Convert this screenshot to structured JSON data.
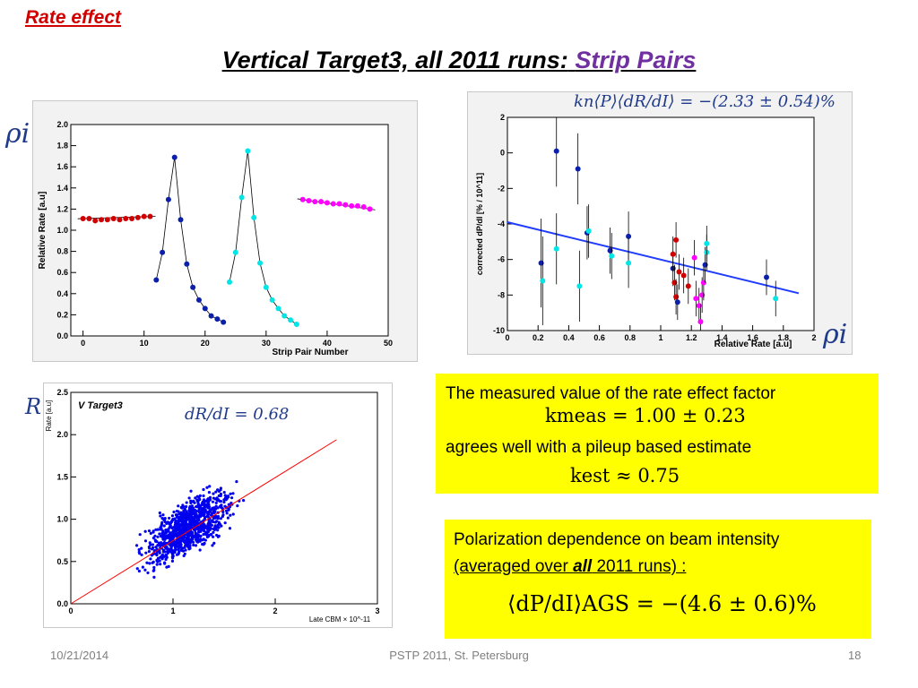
{
  "header": {
    "section_title": "Rate effect",
    "title_main": "Vertical Target3, all 2011 runs:",
    "title_accent": "Strip Pairs"
  },
  "labels": {
    "rho_left": "ρi",
    "rho_right": "ρi",
    "r_label": "R",
    "formula_top": "kn⟨P⟩⟨dR/dI⟩ = −(2.33 ± 0.54)%",
    "formula_dr": "dR/dI = 0.68"
  },
  "box1": {
    "line1": "The measured value of the rate effect factor",
    "math1": "kmeas = 1.00 ± 0.23",
    "line2": "agrees well with a pileup based estimate",
    "math2": "kest ≈ 0.75"
  },
  "box2": {
    "line1": "Polarization dependence on beam intensity",
    "line2_a": "(averaged over ",
    "line2_b": "all",
    "line2_c": " 2011 runs) :",
    "math": "⟨dP/dI⟩AGS = −(4.6 ± 0.6)%"
  },
  "footer": {
    "date": "10/21/2014",
    "conference": "PSTP 2011, St. Petersburg",
    "page": "18"
  },
  "chart_data": [
    {
      "type": "scatter",
      "xlabel": "Strip Pair Number",
      "ylabel": "Relative Rate [a.u]",
      "xlim": [
        -2,
        50
      ],
      "ylim": [
        0,
        2.0
      ],
      "xticks": [
        0,
        10,
        20,
        30,
        40,
        50
      ],
      "yticks": [
        0,
        0.2,
        0.4,
        0.6,
        0.8,
        1.0,
        1.2,
        1.4,
        1.6,
        1.8,
        2.0
      ],
      "series": [
        {
          "color": "#d00000",
          "x": [
            0,
            1,
            2,
            3,
            4,
            5,
            6,
            7,
            8,
            9,
            10,
            11
          ],
          "y": [
            1.11,
            1.11,
            1.09,
            1.1,
            1.1,
            1.11,
            1.1,
            1.11,
            1.11,
            1.12,
            1.13,
            1.13
          ]
        },
        {
          "color": "#0b1fa8",
          "x": [
            12,
            13,
            14,
            15,
            16,
            17,
            18,
            19,
            20,
            21,
            22,
            23
          ],
          "y": [
            0.53,
            0.79,
            1.29,
            1.69,
            1.1,
            0.68,
            0.46,
            0.34,
            0.26,
            0.19,
            0.16,
            0.13
          ]
        },
        {
          "color": "#00e5e5",
          "x": [
            24,
            25,
            26,
            27,
            28,
            29,
            30,
            31,
            32,
            33,
            34,
            35
          ],
          "y": [
            0.51,
            0.79,
            1.31,
            1.75,
            1.12,
            0.69,
            0.46,
            0.34,
            0.26,
            0.19,
            0.15,
            0.11
          ]
        },
        {
          "color": "#ff00ff",
          "x": [
            36,
            37,
            38,
            39,
            40,
            41,
            42,
            43,
            44,
            45,
            46,
            47
          ],
          "y": [
            1.29,
            1.28,
            1.27,
            1.27,
            1.26,
            1.25,
            1.25,
            1.24,
            1.23,
            1.23,
            1.22,
            1.2
          ]
        }
      ]
    },
    {
      "type": "scatter",
      "xlabel": "Relative Rate [a.u]",
      "ylabel": "corrected dP/dI [% / 10^11]",
      "xlim": [
        0,
        2.0
      ],
      "ylim": [
        -10,
        2
      ],
      "xticks": [
        0,
        0.2,
        0.4,
        0.6,
        0.8,
        1.0,
        1.2,
        1.4,
        1.6,
        1.8,
        2.0
      ],
      "yticks": [
        -10,
        -8,
        -6,
        -4,
        -2,
        0,
        2
      ],
      "fit_line": {
        "x": [
          0.0,
          1.9
        ],
        "y": [
          -3.9,
          -7.9
        ]
      },
      "points": [
        {
          "x": 0.22,
          "y": -6.2,
          "err": 2.5,
          "color": "#0b1fa8"
        },
        {
          "x": 0.23,
          "y": -7.2,
          "err": 2.5,
          "color": "#00e5e5"
        },
        {
          "x": 0.32,
          "y": 0.1,
          "err": 2.0,
          "color": "#0b1fa8"
        },
        {
          "x": 0.32,
          "y": -5.4,
          "err": 2.0,
          "color": "#00e5e5"
        },
        {
          "x": 0.46,
          "y": -0.9,
          "err": 2.0,
          "color": "#0b1fa8"
        },
        {
          "x": 0.47,
          "y": -7.5,
          "err": 2.0,
          "color": "#00e5e5"
        },
        {
          "x": 0.52,
          "y": -4.5,
          "err": 1.5,
          "color": "#0b1fa8"
        },
        {
          "x": 0.53,
          "y": -4.4,
          "err": 1.5,
          "color": "#00e5e5"
        },
        {
          "x": 0.67,
          "y": -5.5,
          "err": 1.3,
          "color": "#0b1fa8"
        },
        {
          "x": 0.68,
          "y": -5.8,
          "err": 1.3,
          "color": "#00e5e5"
        },
        {
          "x": 0.79,
          "y": -4.7,
          "err": 1.4,
          "color": "#0b1fa8"
        },
        {
          "x": 0.79,
          "y": -6.2,
          "err": 1.4,
          "color": "#00e5e5"
        },
        {
          "x": 1.08,
          "y": -6.5,
          "err": 1.0,
          "color": "#0b1fa8"
        },
        {
          "x": 1.08,
          "y": -5.7,
          "err": 1.0,
          "color": "#d00000"
        },
        {
          "x": 1.09,
          "y": -7.3,
          "err": 1.0,
          "color": "#d00000"
        },
        {
          "x": 1.1,
          "y": -8.1,
          "err": 1.0,
          "color": "#d00000"
        },
        {
          "x": 1.1,
          "y": -4.9,
          "err": 1.0,
          "color": "#d00000"
        },
        {
          "x": 1.11,
          "y": -8.4,
          "err": 1.0,
          "color": "#0b1fa8"
        },
        {
          "x": 1.12,
          "y": -6.7,
          "err": 1.0,
          "color": "#d00000"
        },
        {
          "x": 1.15,
          "y": -6.9,
          "err": 1.0,
          "color": "#d00000"
        },
        {
          "x": 1.18,
          "y": -7.5,
          "err": 1.0,
          "color": "#d00000"
        },
        {
          "x": 1.22,
          "y": -5.9,
          "err": 1.0,
          "color": "#ff00ff"
        },
        {
          "x": 1.23,
          "y": -8.2,
          "err": 1.0,
          "color": "#ff00ff"
        },
        {
          "x": 1.25,
          "y": -8.6,
          "err": 1.0,
          "color": "#ff00ff"
        },
        {
          "x": 1.26,
          "y": -9.5,
          "err": 1.0,
          "color": "#ff00ff"
        },
        {
          "x": 1.27,
          "y": -8.0,
          "err": 1.0,
          "color": "#ff00ff"
        },
        {
          "x": 1.28,
          "y": -7.3,
          "err": 1.0,
          "color": "#ff00ff"
        },
        {
          "x": 1.29,
          "y": -6.3,
          "err": 1.0,
          "color": "#0b1fa8"
        },
        {
          "x": 1.3,
          "y": -5.6,
          "err": 1.0,
          "color": "#00e5e5"
        },
        {
          "x": 1.3,
          "y": -5.1,
          "err": 1.0,
          "color": "#00e5e5"
        },
        {
          "x": 1.69,
          "y": -7.0,
          "err": 1.0,
          "color": "#0b1fa8"
        },
        {
          "x": 1.75,
          "y": -8.2,
          "err": 1.0,
          "color": "#00e5e5"
        }
      ]
    },
    {
      "type": "scatter",
      "title": "V Target3",
      "xlabel": "Late CBM × 10^-11",
      "ylabel": "Rate [a.u]",
      "xlim": [
        0,
        3
      ],
      "ylim": [
        0,
        2.5
      ],
      "xticks": [
        0,
        1,
        2,
        3
      ],
      "yticks": [
        0,
        0.5,
        1.0,
        1.5,
        2.0,
        2.5
      ],
      "fit_line": {
        "x": [
          0,
          2.6
        ],
        "y": [
          0,
          1.94
        ]
      },
      "point_count": 1000,
      "note": "dense cloud of points around the fit line, spreading from (0,0) up to about (2.6,1.9)"
    }
  ]
}
